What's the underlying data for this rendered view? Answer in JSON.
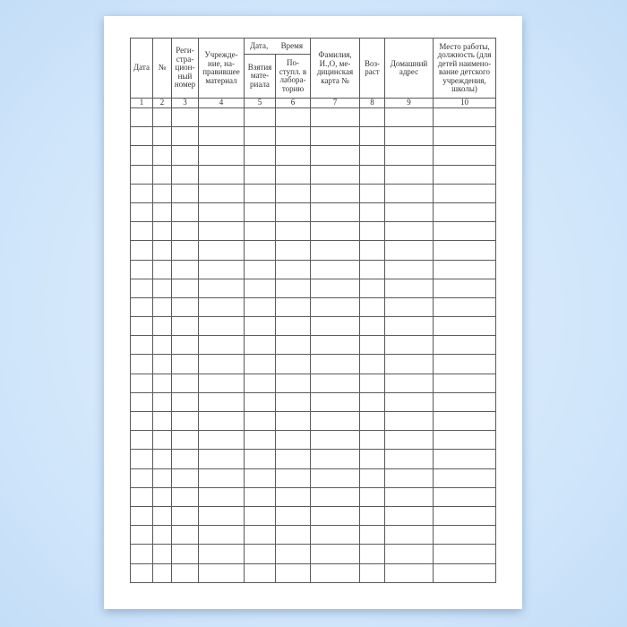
{
  "headers": {
    "date": "Дата",
    "number": "№",
    "reg_number": "Реги-\nстра-\nцион-\nный\nномер",
    "institution": "Учрежде-\nние, на-\nправившее\nматериал",
    "date_label": "Дата,",
    "time_label": "Время",
    "taken": "Взятия\nмате-\nриала",
    "received": "По-\nступл. в\nлабора-\nторию",
    "name": "Фамилия,\nИ.,О, ме-\nдицинская\nкарта №",
    "age": "Воз-\nраст",
    "address": "Домашний\nадрес",
    "workplace": "Место работы,\nдолжность (для\nдетей наимено-\nвание детского\nучреждения,\nшколы)"
  },
  "column_numbers": [
    "1",
    "2",
    "3",
    "4",
    "5",
    "6",
    "7",
    "8",
    "9",
    "10"
  ],
  "empty_row_count": 25,
  "colors": {
    "background": "#d4e8fb",
    "page": "#ffffff",
    "grid": "#5a5a5a"
  }
}
